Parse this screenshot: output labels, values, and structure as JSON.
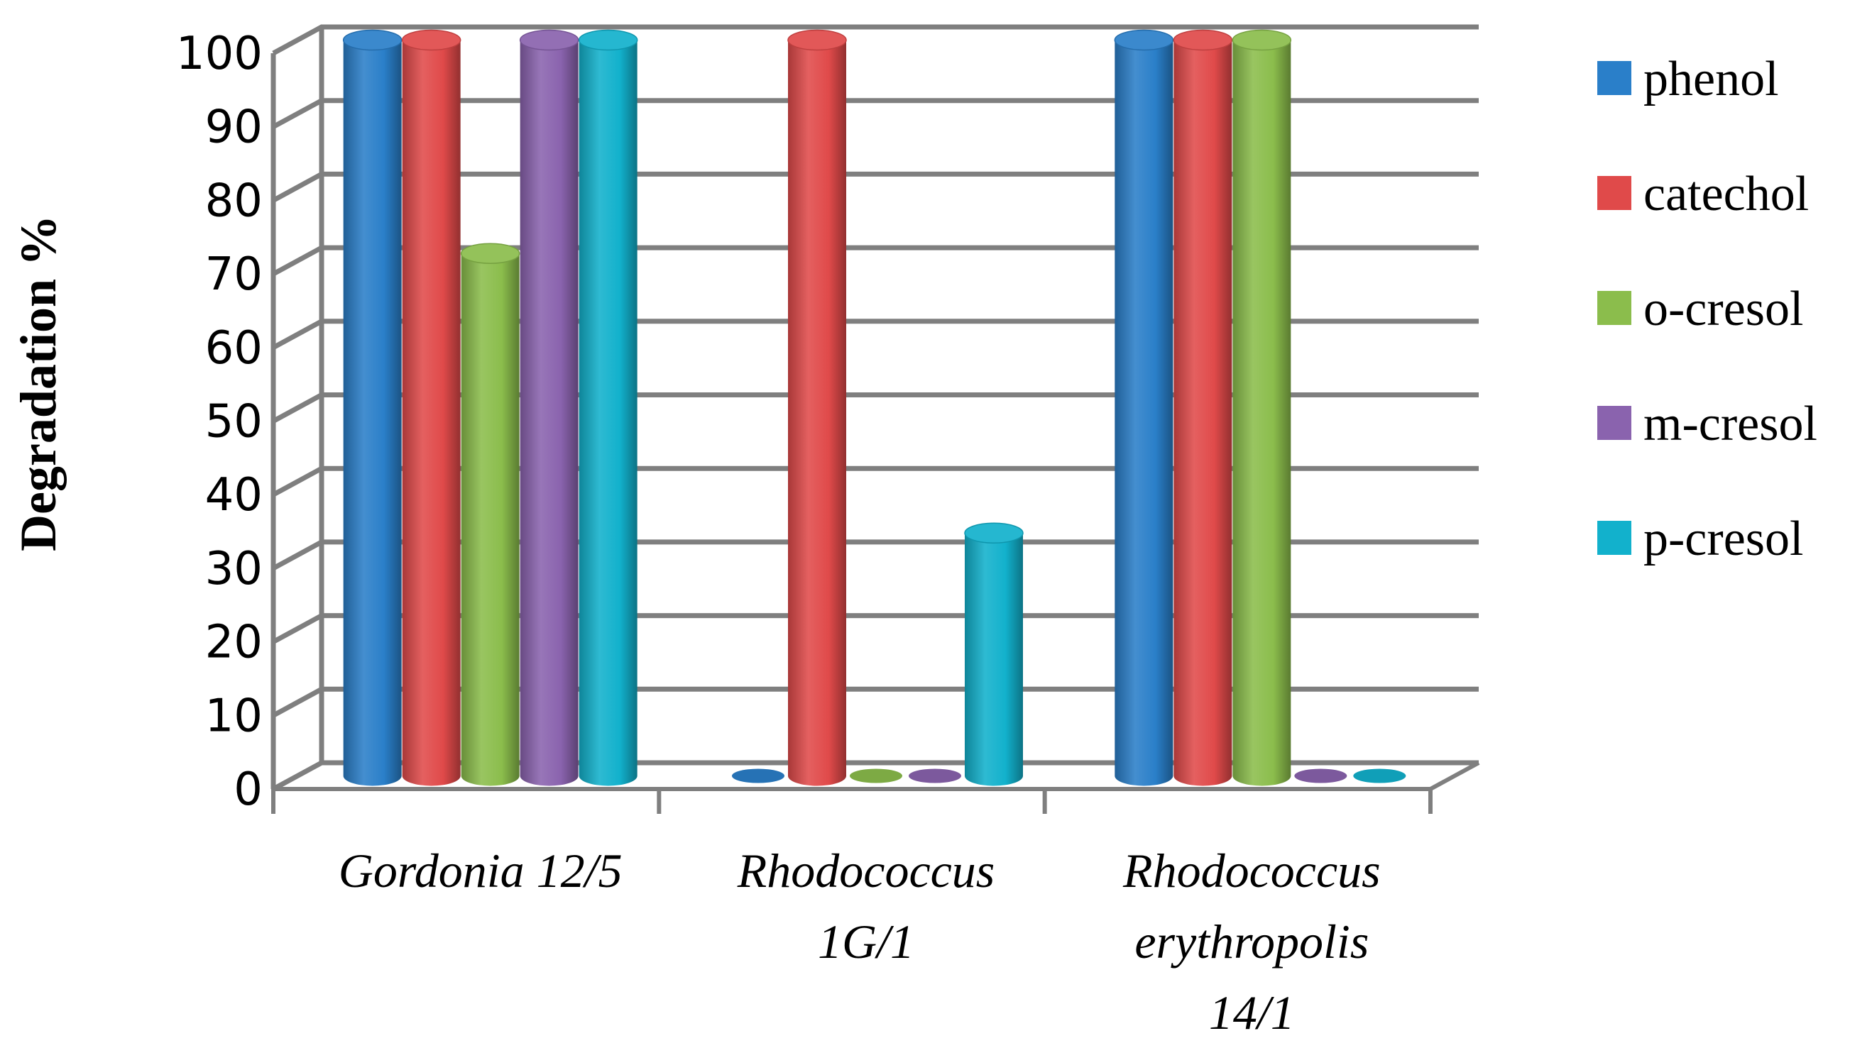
{
  "chart_data": {
    "type": "bar",
    "style": "3d-cylinder",
    "title": "",
    "xlabel": "",
    "ylabel": "Degradation %",
    "ylim": [
      0,
      100
    ],
    "yticks": [
      0,
      10,
      20,
      30,
      40,
      50,
      60,
      70,
      80,
      90,
      100
    ],
    "grid": true,
    "legend_position": "right",
    "categories": [
      [
        "Gordonia 12/5"
      ],
      [
        "Rhodococcus",
        "1G/1"
      ],
      [
        "Rhodococcus",
        "erythropolis",
        "14/1"
      ]
    ],
    "series": [
      {
        "name": "phenol",
        "color": "#2a7fc9",
        "values": [
          100,
          0,
          100
        ]
      },
      {
        "name": "catechol",
        "color": "#e04a4a",
        "values": [
          100,
          100,
          100
        ]
      },
      {
        "name": "o-cresol",
        "color": "#8bbd4c",
        "values": [
          71,
          0,
          100
        ]
      },
      {
        "name": "m-cresol",
        "color": "#8a63ae",
        "values": [
          100,
          0,
          0
        ]
      },
      {
        "name": "p-cresol",
        "color": "#12b1cc",
        "values": [
          100,
          33,
          0
        ]
      }
    ]
  }
}
